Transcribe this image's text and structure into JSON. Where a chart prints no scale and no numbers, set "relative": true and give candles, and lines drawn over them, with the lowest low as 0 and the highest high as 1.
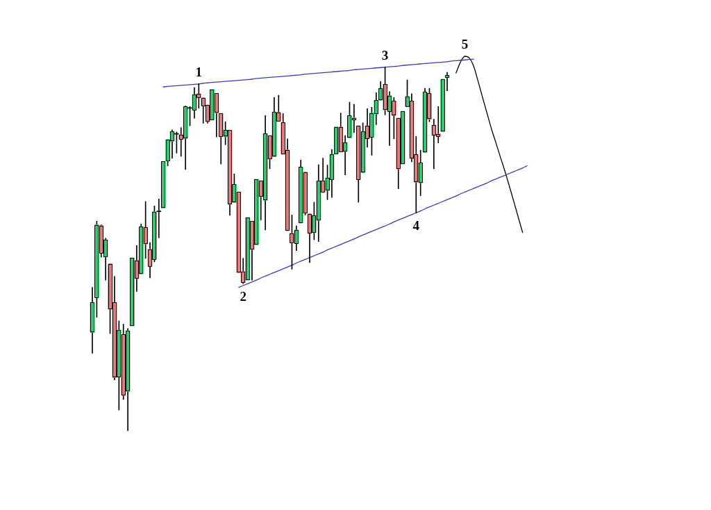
{
  "chart_data": {
    "type": "candlestick",
    "relative": true,
    "marker": "none",
    "categories": [
      null,
      null,
      null,
      null,
      null,
      null,
      null,
      null,
      null,
      null,
      null,
      null,
      null,
      null,
      null,
      null,
      null,
      null,
      null,
      null,
      null,
      null,
      null,
      null,
      null,
      null,
      null,
      null,
      null,
      null,
      null,
      null,
      null,
      null,
      null,
      null,
      null,
      null,
      null,
      null,
      null,
      null,
      null,
      null,
      null,
      null,
      null,
      null,
      null,
      null,
      null,
      null,
      null,
      null,
      null,
      null,
      null,
      null,
      null,
      null,
      null,
      null,
      null,
      null,
      null,
      null,
      null,
      null,
      null,
      null,
      null,
      null,
      null,
      null,
      null,
      null,
      null,
      null,
      null,
      null,
      null,
      null,
      null,
      null,
      null,
      null,
      null,
      null,
      null,
      null,
      null,
      null,
      null,
      null,
      null,
      null,
      null,
      null,
      null
    ],
    "ohlc": [
      [
        0.27,
        0.394,
        0.213,
        0.353
      ],
      [
        0.366,
        0.576,
        0.312,
        0.566
      ],
      [
        0.564,
        0.566,
        0.477,
        0.488
      ],
      [
        0.478,
        0.529,
        0.414,
        0.525
      ],
      [
        0.459,
        0.459,
        0.267,
        0.334
      ],
      [
        0.353,
        0.424,
        0.14,
        0.146
      ],
      [
        0.148,
        0.302,
        0.057,
        0.277
      ],
      [
        0.265,
        0.293,
        0.086,
        0.097
      ],
      [
        0.108,
        0.281,
        0,
        0.275
      ],
      [
        0.288,
        0.477,
        0.288,
        0.475
      ],
      [
        0.468,
        0.509,
        0.383,
        0.418
      ],
      [
        0.431,
        0.568,
        0.431,
        0.561
      ],
      [
        0.559,
        0.63,
        0.474,
        0.513
      ],
      [
        0.499,
        0.517,
        0.42,
        0.452
      ],
      [
        0.471,
        0.618,
        0.464,
        0.602
      ],
      [
        0.602,
        0.637,
        0.53,
        0.602
      ],
      [
        0.612,
        0.74,
        0.612,
        0.74
      ],
      [
        0.741,
        0.8,
        0.728,
        0.8
      ],
      [
        0.795,
        0.827,
        0.749,
        0.822
      ],
      [
        0.815,
        0.821,
        0.763,
        0.815
      ],
      [
        0.814,
        0.833,
        0.754,
        0.8
      ],
      [
        0.803,
        0.893,
        0.718,
        0.891
      ],
      [
        0.886,
        0.891,
        0.838,
        0.886
      ],
      [
        0.881,
        0.943,
        0.859,
        0.924
      ],
      [
        0.926,
        0.954,
        0.886,
        0.915
      ],
      [
        0.915,
        0.915,
        0.845,
        0.893
      ],
      [
        0.895,
        0.895,
        0.845,
        0.849
      ],
      [
        0.854,
        0.938,
        0.851,
        0.938
      ],
      [
        0.927,
        0.927,
        0.807,
        0.873
      ],
      [
        0.872,
        0.872,
        0.733,
        0.808
      ],
      [
        0.808,
        0.849,
        0.786,
        0.826
      ],
      [
        0.826,
        0.826,
        0.592,
        0.622
      ],
      [
        0.627,
        0.706,
        0.627,
        0.677
      ],
      [
        0.656,
        0.656,
        0.434,
        0.434
      ],
      [
        0.438,
        0.474,
        0.404,
        0.407
      ],
      [
        0.414,
        0.586,
        0.414,
        0.586
      ],
      [
        0.576,
        0.576,
        0.414,
        0.498
      ],
      [
        0.511,
        0.693,
        0.511,
        0.691
      ],
      [
        0.687,
        0.687,
        0.579,
        0.643
      ],
      [
        0.633,
        0.866,
        0.552,
        0.817
      ],
      [
        0.811,
        0.811,
        0.72,
        0.746
      ],
      [
        0.753,
        0.916,
        0.753,
        0.876
      ],
      [
        0.875,
        0.922,
        0.851,
        0.851
      ],
      [
        0.847,
        0.872,
        0.76,
        0.76
      ],
      [
        0.772,
        0.802,
        0.55,
        0.55
      ],
      [
        0.543,
        0.593,
        0.444,
        0.517
      ],
      [
        0.514,
        0.563,
        0.495,
        0.552
      ],
      [
        0.571,
        0.744,
        0.571,
        0.725
      ],
      [
        0.711,
        0.711,
        0.593,
        0.598
      ],
      [
        0.596,
        0.596,
        0.462,
        0.542
      ],
      [
        0.544,
        0.628,
        0.525,
        0.592
      ],
      [
        0.578,
        0.731,
        0.52,
        0.687
      ],
      [
        0.687,
        0.749,
        0.655,
        0.655
      ],
      [
        0.66,
        0.73,
        0.635,
        0.695
      ],
      [
        0.69,
        0.773,
        0.641,
        0.76
      ],
      [
        0.761,
        0.838,
        0.761,
        0.835
      ],
      [
        0.835,
        0.873,
        0.767,
        0.767
      ],
      [
        0.767,
        0.811,
        0.703,
        0.792
      ],
      [
        0.805,
        0.903,
        0.805,
        0.866
      ],
      [
        0.86,
        0.897,
        0.819,
        0.854
      ],
      [
        0.838,
        0.838,
        0.628,
        0.69
      ],
      [
        0.709,
        0.846,
        0.709,
        0.822
      ],
      [
        0.838,
        0.885,
        0.779,
        0.802
      ],
      [
        0.807,
        0.889,
        0.757,
        0.873
      ],
      [
        0.87,
        0.929,
        0.841,
        0.908
      ],
      [
        0.908,
        0.96,
        0.908,
        0.941
      ],
      [
        0.952,
        1,
        0.868,
        0.881
      ],
      [
        0.878,
        0.932,
        0.784,
        0.921
      ],
      [
        0.906,
        0.916,
        0.802,
        0.866
      ],
      [
        0.859,
        0.859,
        0.665,
        0.719
      ],
      [
        0.733,
        0.878,
        0.733,
        0.878
      ],
      [
        0.891,
        0.964,
        0.891,
        0.919
      ],
      [
        0.906,
        0.926,
        0.739,
        0.748
      ],
      [
        0.759,
        0.809,
        0.598,
        0.683
      ],
      [
        0.681,
        0.771,
        0.646,
        0.736
      ],
      [
        0.765,
        0.941,
        0.765,
        0.931
      ],
      [
        0.927,
        0.941,
        0.849,
        0.856
      ],
      [
        0.84,
        0.856,
        0.72,
        0.812
      ],
      [
        0.816,
        0.891,
        0.791,
        0.808
      ],
      [
        0.822,
        0.968,
        0.822,
        0.966
      ],
      [
        0.97,
        0.985,
        0.934,
        0.977
      ],
      null,
      null,
      null,
      null,
      null,
      null,
      null,
      null,
      null,
      null,
      null,
      null,
      null,
      null,
      null,
      null,
      null,
      null
    ],
    "colors": [
      "#2ecc71",
      "#2ecc71",
      "#e57b7b",
      "#2ecc71",
      "#e57b7b",
      "#e57b7b",
      "#2ecc71",
      "#e57b7b",
      "#2ecc71",
      "#2ecc71",
      "#e57b7b",
      "#2ecc71",
      "#e57b7b",
      "#e57b7b",
      "#2ecc71",
      "#000000",
      "#2ecc71",
      "#2ecc71",
      "#2ecc71",
      "#000000",
      "#e57b7b",
      "#2ecc71",
      "#000000",
      "#2ecc71",
      "#e57b7b",
      "#e57b7b",
      "#e57b7b",
      "#2ecc71",
      "#e57b7b",
      "#e57b7b",
      "#2ecc71",
      "#e57b7b",
      "#2ecc71",
      "#e57b7b",
      "#e57b7b",
      "#2ecc71",
      "#e57b7b",
      "#2ecc71",
      "#e57b7b",
      "#2ecc71",
      "#e57b7b",
      "#2ecc71",
      "#e57b7b",
      "#e57b7b",
      "#e57b7b",
      "#e57b7b",
      "#2ecc71",
      "#2ecc71",
      "#e57b7b",
      "#e57b7b",
      "#2ecc71",
      "#2ecc71",
      "#e57b7b",
      "#2ecc71",
      "#2ecc71",
      "#2ecc71",
      "#e57b7b",
      "#2ecc71",
      "#2ecc71",
      "#e57b7b",
      "#e57b7b",
      "#2ecc71",
      "#e57b7b",
      "#2ecc71",
      "#2ecc71",
      "#2ecc71",
      "#e57b7b",
      "#2ecc71",
      "#e57b7b",
      "#e57b7b",
      "#2ecc71",
      "#2ecc71",
      "#e57b7b",
      "#e57b7b",
      "#2ecc71",
      "#2ecc71",
      "#e57b7b",
      "#e57b7b",
      "#e57b7b",
      "#2ecc71",
      "#2ecc71",
      null,
      null,
      null,
      null,
      null,
      null,
      null,
      null,
      null,
      null,
      null,
      null,
      null,
      null,
      null,
      null,
      null,
      null
    ],
    "series": [
      {
        "type": "line",
        "color": "#3c3cb4",
        "values": [
          null,
          null,
          null,
          null,
          null,
          null,
          null,
          null,
          null,
          null,
          null,
          null,
          null,
          null,
          null,
          null,
          0.945,
          0.946,
          0.947,
          0.948,
          0.949,
          0.95,
          0.951,
          0.952,
          0.953,
          0.955,
          0.956,
          0.957,
          0.958,
          0.959,
          0.96,
          0.961,
          0.962,
          0.963,
          0.964,
          0.965,
          0.966,
          0.968,
          0.969,
          0.97,
          0.971,
          0.972,
          0.973,
          0.974,
          0.975,
          0.976,
          0.977,
          0.978,
          0.98,
          0.981,
          0.982,
          0.983,
          0.984,
          0.985,
          0.986,
          0.987,
          0.988,
          0.989,
          0.99,
          0.992,
          0.993,
          0.994,
          0.995,
          0.996,
          0.997,
          0.998,
          0.999,
          1.0,
          1.001,
          1.002,
          1.004,
          1.005,
          1.006,
          1.007,
          1.008,
          1.009,
          1.01,
          1.011,
          1.012,
          1.013,
          1.014,
          1.016,
          1.017,
          1.018,
          1.019,
          1.02,
          1.021,
          null,
          null,
          null,
          null,
          null,
          null,
          null,
          null,
          null,
          null,
          null,
          null
        ]
      },
      {
        "type": "line",
        "color": "#3c3cb4",
        "values": [
          null,
          null,
          null,
          null,
          null,
          null,
          null,
          null,
          null,
          null,
          null,
          null,
          null,
          null,
          null,
          null,
          null,
          null,
          null,
          null,
          null,
          null,
          null,
          null,
          null,
          null,
          null,
          null,
          null,
          null,
          null,
          null,
          null,
          0.394,
          0.399,
          0.404,
          0.409,
          0.414,
          0.42,
          0.425,
          0.43,
          0.435,
          0.44,
          0.445,
          0.45,
          0.455,
          0.461,
          0.466,
          0.471,
          0.476,
          0.481,
          0.486,
          0.491,
          0.497,
          0.502,
          0.507,
          0.512,
          0.517,
          0.522,
          0.527,
          0.533,
          0.538,
          0.543,
          0.548,
          0.553,
          0.558,
          0.563,
          0.568,
          0.574,
          0.579,
          0.584,
          0.589,
          0.594,
          0.599,
          0.604,
          0.61,
          0.615,
          0.62,
          0.625,
          0.63,
          0.635,
          0.64,
          0.645,
          0.651,
          0.656,
          0.661,
          0.666,
          0.671,
          0.676,
          0.681,
          0.687,
          0.692,
          0.697,
          0.702,
          0.707,
          0.712,
          0.717,
          0.722,
          0.728
        ]
      },
      {
        "type": "line",
        "color": "#000000",
        "values": [
          null,
          null,
          null,
          null,
          null,
          null,
          null,
          null,
          null,
          null,
          null,
          null,
          null,
          null,
          null,
          null,
          null,
          null,
          null,
          null,
          null,
          null,
          null,
          null,
          null,
          null,
          null,
          null,
          null,
          null,
          null,
          null,
          null,
          null,
          null,
          null,
          null,
          null,
          null,
          null,
          null,
          null,
          null,
          null,
          null,
          null,
          null,
          null,
          null,
          null,
          null,
          null,
          null,
          null,
          null,
          null,
          null,
          null,
          null,
          null,
          null,
          null,
          null,
          null,
          null,
          null,
          null,
          null,
          null,
          null,
          null,
          null,
          null,
          null,
          null,
          null,
          null,
          null,
          null,
          null,
          null,
          null,
          0.983,
          1.013,
          1.029,
          1.024,
          1.001,
          0.959,
          0.915,
          0.872,
          0.829,
          0.791,
          0.752,
          0.714,
          0.673,
          0.631,
          0.588,
          0.545,
          null
        ]
      }
    ],
    "annotations": [
      {
        "text": "1",
        "y": 0.954
      },
      {
        "text": "2",
        "y": 0.404
      },
      {
        "text": "3",
        "y": 1
      },
      {
        "text": "4",
        "y": 0.598
      },
      {
        "text": "5",
        "y": 1.029
      }
    ]
  }
}
